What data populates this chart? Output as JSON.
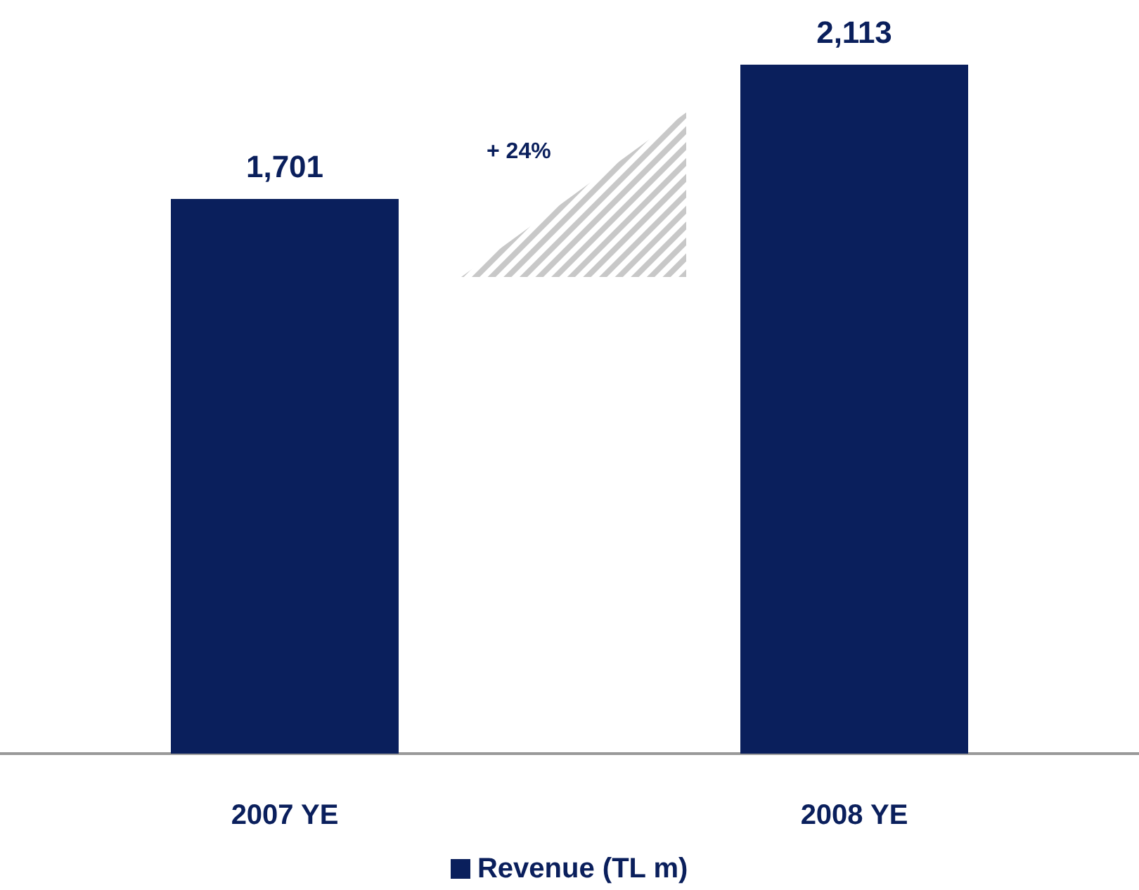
{
  "chart_data": {
    "type": "bar",
    "categories": [
      "2007 YE",
      "2008 YE"
    ],
    "series": [
      {
        "name": "Revenue (TL m)",
        "color": "#0a1f5c",
        "values": [
          1701,
          2113
        ],
        "value_labels": [
          "1,701",
          "2,113"
        ]
      }
    ],
    "legend": "bottom",
    "annotations": [
      "+ 24%"
    ]
  }
}
